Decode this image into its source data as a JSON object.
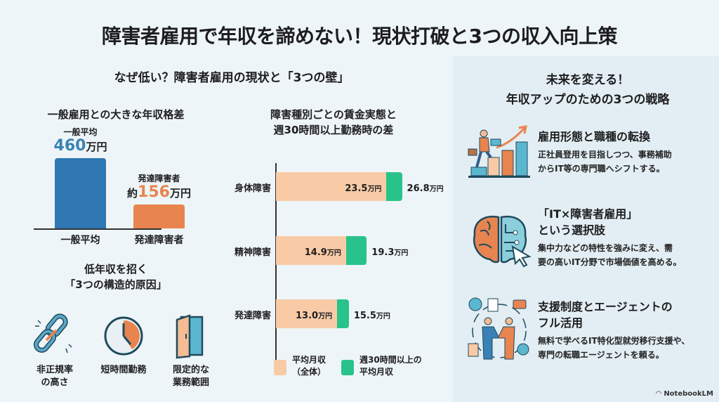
{
  "title": "障害者雇用で年収を諦めない！現状打破と3つの収入向上策",
  "left": {
    "heading": "なぜ低い？障害者雇用の現状と「3つの壁」",
    "causes": {
      "title_line1": "低年収を招く",
      "title_line2": "「3つの構造的原因」",
      "items": [
        {
          "icon": "broken-chain-icon",
          "line1": "非正規率",
          "line2": "の高さ"
        },
        {
          "icon": "clock-icon",
          "line1": "短時間勤務",
          "line2": ""
        },
        {
          "icon": "door-icon",
          "line1": "限定的な",
          "line2": "業務範囲"
        }
      ]
    }
  },
  "right": {
    "heading_line1": "未来を変える！",
    "heading_line2": "年収アップのための3つの戦略",
    "strategies": [
      {
        "icon": "career-growth-icon",
        "title_line1": "雇用形態と職種の転換",
        "title_line2": "",
        "desc_line1": "正社員登用を目指しつつ、事務補助",
        "desc_line2": "からIT等の専門職へシフトする。"
      },
      {
        "icon": "brain-circuit-icon",
        "title_line1": "「IT×障害者雇用」",
        "title_line2": "という選択肢",
        "desc_line1": "集中力などの特性を強みに変え、需",
        "desc_line2": "要の高いIT分野で市場価値を高める。"
      },
      {
        "icon": "handshake-network-icon",
        "title_line1": "支援制度とエージェントの",
        "title_line2": "フル活用",
        "desc_line1": "無料で学べるIT特化型就労移行支援や、",
        "desc_line2": "専門の転職エージェントを頼る。"
      }
    ]
  },
  "watermark": "NotebookLM",
  "colors": {
    "blue": "#2f78b3",
    "orange": "#e8844f",
    "peach": "#f8cba6",
    "green": "#27c38b",
    "blue_text": "#3a82b5"
  },
  "chart_data": [
    {
      "type": "bar",
      "title": "一般雇用との大きな年収格差",
      "categories": [
        "一般平均",
        "発達障害者"
      ],
      "values": [
        460,
        156
      ],
      "unit": "万円",
      "data_labels": [
        {
          "caption": "一般平均",
          "prefix": "",
          "value": "460",
          "unit": "万円"
        },
        {
          "caption": "発達障害者",
          "prefix": "約",
          "value": "156",
          "unit": "万円"
        }
      ]
    },
    {
      "type": "bar",
      "orientation": "horizontal",
      "title_line1": "障害種別ごとの賃金実態と",
      "title_line2": "週30時間以上勤務時の差",
      "categories": [
        "身体障害",
        "精神障害",
        "発達障害"
      ],
      "unit": "万円",
      "series": [
        {
          "name": "平均月収（全体）",
          "legend_line1": "平均月収",
          "legend_line2": "（全体）",
          "values": [
            23.5,
            14.9,
            13.0
          ]
        },
        {
          "name": "週30時間以上の平均月収",
          "legend_line1": "週30時間以上の",
          "legend_line2": "平均月収",
          "values": [
            26.8,
            19.3,
            15.5
          ]
        }
      ]
    }
  ]
}
